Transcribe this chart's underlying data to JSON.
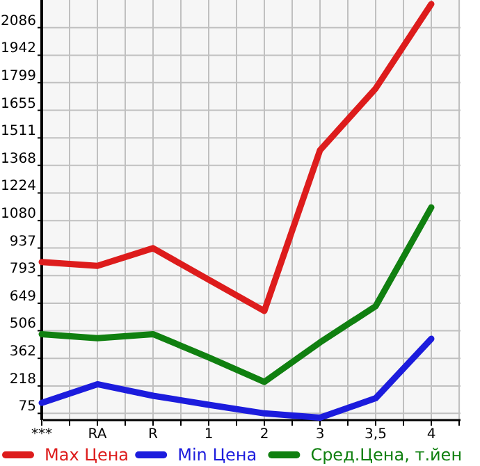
{
  "chart_data": {
    "type": "line",
    "categories": [
      "***",
      "RA",
      "R",
      "1",
      "2",
      "3",
      "3,5",
      "4"
    ],
    "series": [
      {
        "name": "Max Цена",
        "color": "#dd1c1c",
        "values": [
          864,
          844,
          936,
          772,
          609,
          1447,
          1769,
          2209
        ]
      },
      {
        "name": "Min Цена",
        "color": "#1c1cdd",
        "values": [
          130,
          227,
          167,
          120,
          75,
          53,
          154,
          464
        ]
      },
      {
        "name": "Сред.Цена, т.йен",
        "color": "#108010",
        "values": [
          488,
          467,
          488,
          367,
          239,
          445,
          634,
          1149
        ]
      }
    ],
    "ylim": [
      40,
      2230
    ],
    "yticks": [
      75,
      218,
      362,
      506,
      649,
      793,
      937,
      1080,
      1224,
      1368,
      1511,
      1655,
      1799,
      1942,
      2086
    ],
    "grid": true,
    "legend": "bottom",
    "marker": "none",
    "line_style": "solid"
  }
}
